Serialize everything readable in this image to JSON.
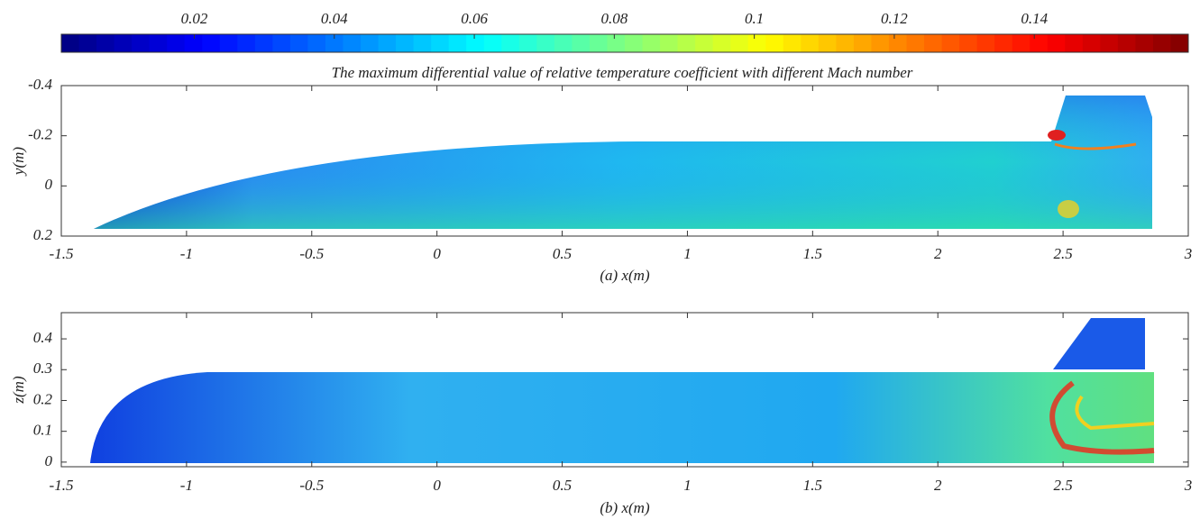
{
  "chart_data": [
    {
      "type": "colorbar",
      "colormap": "jet",
      "clim": [
        0.001,
        0.162
      ],
      "ticks": [
        0.02,
        0.04,
        0.06,
        0.08,
        0.1,
        0.12,
        0.14
      ]
    },
    {
      "type": "field",
      "title": "The maximum differential value of relative temperature coefficient with different Mach number",
      "xlabel": "(a) x(m)",
      "ylabel": "y(m)",
      "xlim": [
        -1.5,
        3
      ],
      "ylim": [
        0.2,
        -0.4
      ],
      "xticks": [
        -1.5,
        -1,
        -0.5,
        0,
        0.5,
        1,
        1.5,
        2,
        2.5,
        3
      ],
      "yticks": [
        -0.4,
        -0.2,
        0,
        0.2
      ]
    },
    {
      "type": "field",
      "xlabel": "(b)  x(m)",
      "ylabel": "z(m)",
      "xlim": [
        -1.5,
        3
      ],
      "ylim": [
        -0.015,
        0.485
      ],
      "xticks": [
        -1.5,
        -1,
        -0.5,
        0,
        0.5,
        1,
        1.5,
        2,
        2.5,
        3
      ],
      "yticks": [
        0,
        0.1,
        0.2,
        0.3,
        0.4
      ]
    }
  ]
}
